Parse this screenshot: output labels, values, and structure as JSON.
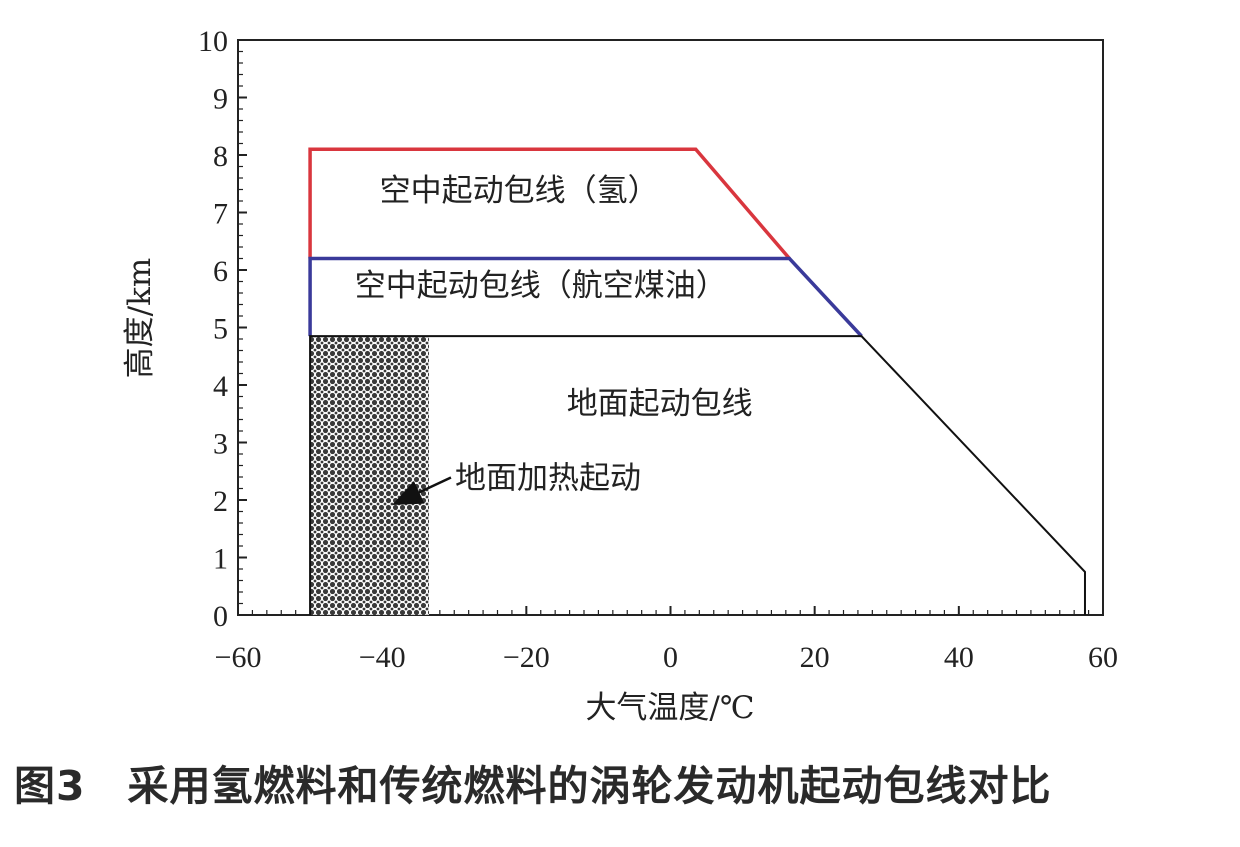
{
  "caption": "图3　采用氢燃料和传统燃料的涡轮发动机起动包线对比",
  "chart_data": {
    "type": "area",
    "xlabel": "大气温度/℃",
    "ylabel": "高度/km",
    "xlim": [
      -60,
      60
    ],
    "ylim": [
      0,
      10
    ],
    "x_ticks": [
      -60,
      -40,
      -20,
      0,
      20,
      40,
      60
    ],
    "y_ticks": [
      0,
      1,
      2,
      3,
      4,
      5,
      6,
      7,
      8,
      9,
      10
    ],
    "grid": false,
    "series": [
      {
        "name": "空中起动包线(氢)",
        "color": "#d9363e",
        "x": [
          -50,
          -50,
          3.5,
          16.5
        ],
        "y": [
          6.2,
          8.1,
          8.1,
          6.2
        ]
      },
      {
        "name": "空中起动包线(航空煤油)",
        "color": "#3a3a9a",
        "x": [
          -50,
          -50,
          16.5,
          26.5
        ],
        "y": [
          4.85,
          6.2,
          6.2,
          4.85
        ]
      },
      {
        "name": "地面起动包线",
        "color": "#111111",
        "x": [
          -50,
          -50,
          26.5,
          57.5,
          57.5
        ],
        "y": [
          0,
          4.85,
          4.85,
          0.75,
          0
        ]
      }
    ],
    "hatched_region": {
      "name": "地面加热起动",
      "x": [
        -50,
        -33.5
      ],
      "y": [
        0,
        4.85
      ]
    },
    "annotations": [
      {
        "text": "空中起动包线（氢）",
        "x": -21,
        "y": 7.2
      },
      {
        "text": "空中起动包线（航空煤油）",
        "x": -18,
        "y": 5.55
      },
      {
        "text": "地面起动包线",
        "x": -1.5,
        "y": 3.5
      },
      {
        "text": "地面加热起动",
        "x": -17,
        "y": 2.2,
        "arrow_to": [
          -38,
          1.95
        ]
      }
    ]
  }
}
